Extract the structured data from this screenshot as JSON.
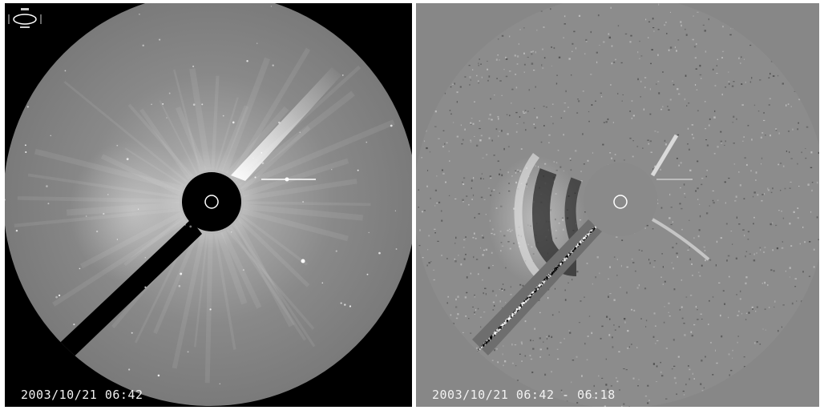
{
  "left_panel": {
    "timestamp": "2003/10/21 06:42",
    "colors": {
      "background": "#000000",
      "field": "#7f7f7f",
      "occulter": "#000000",
      "sun_outline": "#ffffff"
    },
    "logo_icon": "lasco-logo"
  },
  "right_panel": {
    "timestamp": "2003/10/21 06:42 - 06:18",
    "colors": {
      "background": "#878787",
      "field": "#8c8c8c",
      "sun_outline": "#ffffff"
    }
  }
}
